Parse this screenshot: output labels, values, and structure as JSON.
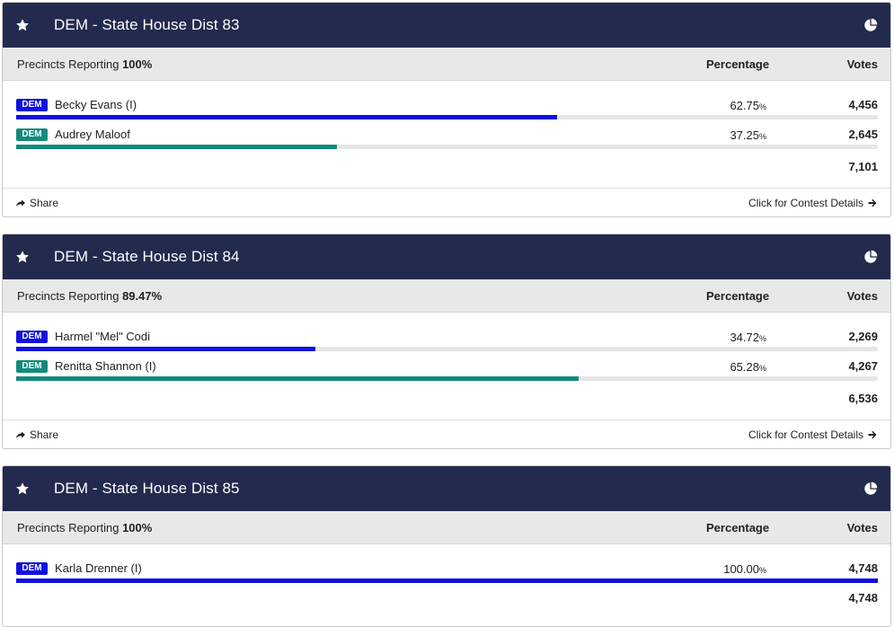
{
  "contests": [
    {
      "title": "DEM - State House Dist 83",
      "precincts_label": "Precincts Reporting",
      "precincts_value": "100%",
      "col_percentage": "Percentage",
      "col_votes": "Votes",
      "candidates": [
        {
          "party": "DEM",
          "name": "Becky Evans (I)",
          "pct": "62.75",
          "pct_sign": "%",
          "votes": "4,456",
          "share": 0.6275,
          "color": "#1010e0"
        },
        {
          "party": "DEM",
          "name": "Audrey Maloof",
          "pct": "37.25",
          "pct_sign": "%",
          "votes": "2,645",
          "share": 0.3725,
          "color": "#138a7c"
        }
      ],
      "total": "7,101",
      "share_label": "Share",
      "details_label": "Click for Contest Details"
    },
    {
      "title": "DEM - State House Dist 84",
      "precincts_label": "Precincts Reporting",
      "precincts_value": "89.47%",
      "col_percentage": "Percentage",
      "col_votes": "Votes",
      "candidates": [
        {
          "party": "DEM",
          "name": "Harmel \"Mel\" Codi",
          "pct": "34.72",
          "pct_sign": "%",
          "votes": "2,269",
          "share": 0.3472,
          "color": "#1010e0"
        },
        {
          "party": "DEM",
          "name": "Renitta Shannon (I)",
          "pct": "65.28",
          "pct_sign": "%",
          "votes": "4,267",
          "share": 0.6528,
          "color": "#138a7c"
        }
      ],
      "total": "6,536",
      "share_label": "Share",
      "details_label": "Click for Contest Details"
    },
    {
      "title": "DEM - State House Dist 85",
      "precincts_label": "Precincts Reporting",
      "precincts_value": "100%",
      "col_percentage": "Percentage",
      "col_votes": "Votes",
      "candidates": [
        {
          "party": "DEM",
          "name": "Karla Drenner (I)",
          "pct": "100.00",
          "pct_sign": "%",
          "votes": "4,748",
          "share": 1.0,
          "color": "#1010e0"
        }
      ],
      "total": "4,748"
    }
  ],
  "icons": {
    "header_left": "star-icon",
    "header_right": "pie-chart-icon",
    "footer_left": "share-icon",
    "footer_right": "arrow-right-icon"
  }
}
